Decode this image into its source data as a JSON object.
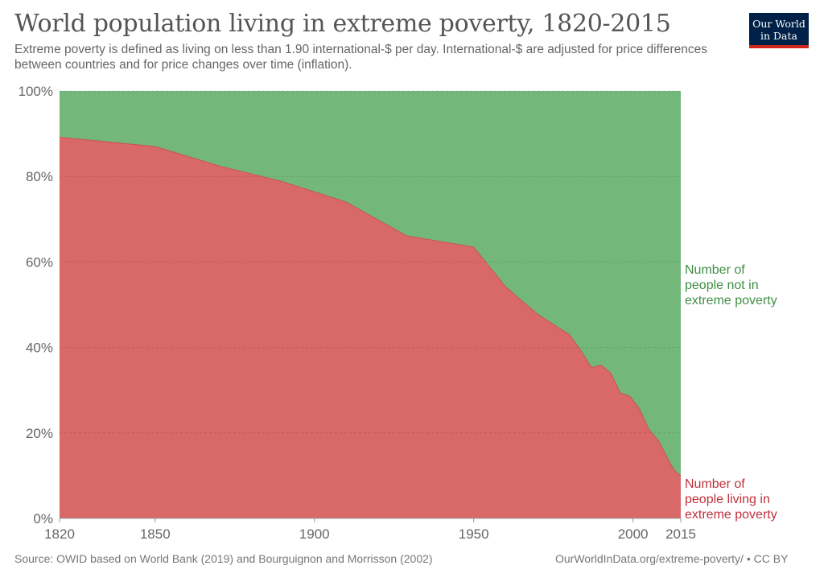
{
  "header": {
    "title": "World population living in extreme poverty, 1820-2015",
    "subtitle": "Extreme poverty is defined as living on less than 1.90 international-$ per day. International-$ are adjusted for price differences between countries and for price changes over time (inflation).",
    "logo_line1": "Our World",
    "logo_line2": "in Data"
  },
  "footer": {
    "source": "Source: OWID based on World Bank (2019) and Bourguignon and Morrisson (2002)",
    "url": "OurWorldInData.org/extreme-poverty/ • CC BY"
  },
  "chart_data": {
    "type": "area",
    "stacked": true,
    "relative": true,
    "x": [
      1820,
      1850,
      1870,
      1890,
      1910,
      1929,
      1950,
      1960,
      1970,
      1980,
      1983,
      1987,
      1990,
      1993,
      1996,
      1999,
      2002,
      2005,
      2008,
      2011,
      2013,
      2015
    ],
    "series": [
      {
        "name": "Number of people living in extreme poverty",
        "color": "#d96868",
        "values": [
          89.2,
          87.0,
          82.5,
          78.8,
          74.0,
          66.1,
          63.5,
          54.2,
          47.8,
          43.0,
          40.0,
          35.3,
          35.9,
          34.0,
          29.4,
          28.6,
          25.7,
          20.8,
          18.2,
          13.9,
          11.2,
          10.0
        ]
      },
      {
        "name": "Number of people not in extreme poverty",
        "color": "#73b87a",
        "values": [
          10.8,
          13.0,
          17.5,
          21.2,
          26.0,
          33.9,
          36.5,
          45.8,
          52.2,
          57.0,
          60.0,
          64.7,
          64.1,
          66.0,
          70.6,
          71.4,
          74.3,
          79.2,
          81.8,
          86.1,
          88.8,
          90.0
        ]
      }
    ],
    "series_labels": {
      "not_poor": [
        "Number of",
        "people not in",
        "extreme poverty"
      ],
      "poor": [
        "Number of",
        "people living in",
        "extreme poverty"
      ]
    },
    "label_colors": {
      "not_poor": "#3f8f45",
      "poor": "#c0313a"
    },
    "xlim": [
      1820,
      2015
    ],
    "ylim": [
      0,
      100
    ],
    "x_ticks": [
      1820,
      1850,
      1900,
      1950,
      2000,
      2015
    ],
    "y_ticks": [
      0,
      20,
      40,
      60,
      80,
      100
    ],
    "y_tick_labels": [
      "0%",
      "20%",
      "40%",
      "60%",
      "80%",
      "100%"
    ],
    "grid": "horizontal dashed"
  }
}
